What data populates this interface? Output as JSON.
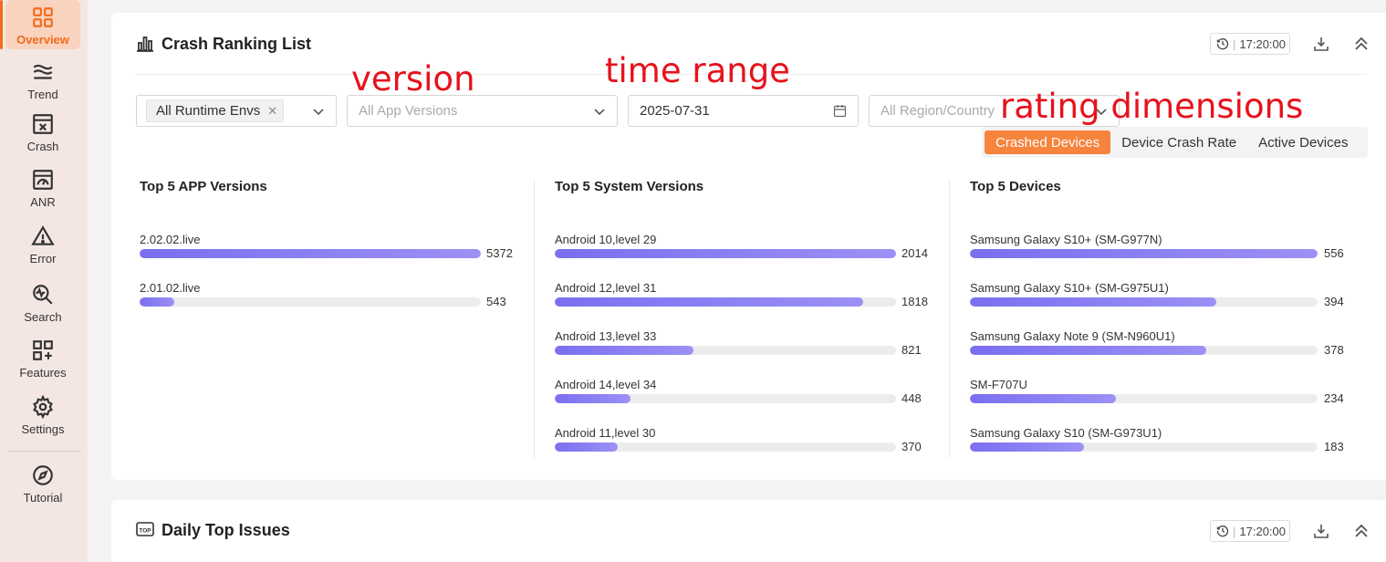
{
  "sidebar": {
    "items": [
      {
        "label": "Overview",
        "icon": "grid-icon",
        "active": true
      },
      {
        "label": "Trend",
        "icon": "wave-icon"
      },
      {
        "label": "Crash",
        "icon": "crash-window-icon"
      },
      {
        "label": "ANR",
        "icon": "gauge-window-icon"
      },
      {
        "label": "Error",
        "icon": "warning-icon"
      },
      {
        "label": "Search",
        "icon": "search-pulse-icon"
      },
      {
        "label": "Features",
        "icon": "apps-plus-icon"
      },
      {
        "label": "Settings",
        "icon": "gear-icon"
      },
      {
        "label": "Tutorial",
        "icon": "compass-icon"
      }
    ]
  },
  "card1": {
    "title": "Crash Ranking List",
    "time": "17:20:00",
    "filters": {
      "runtime_tag": "All Runtime Envs",
      "app_versions_placeholder": "All App Versions",
      "date": "2025-07-31",
      "region_placeholder": "All Region/Country"
    },
    "dimensions": [
      "Crashed Devices",
      "Device Crash Rate",
      "Active Devices"
    ],
    "active_dimension": 0,
    "columns": [
      {
        "title": "Top 5 APP Versions",
        "max": 5372,
        "rows": [
          {
            "label": "2.02.02.live",
            "value": 5372
          },
          {
            "label": "2.01.02.live",
            "value": 543
          }
        ]
      },
      {
        "title": "Top 5 System Versions",
        "max": 2014,
        "rows": [
          {
            "label": "Android 10,level 29",
            "value": 2014
          },
          {
            "label": "Android 12,level 31",
            "value": 1818
          },
          {
            "label": "Android 13,level 33",
            "value": 821
          },
          {
            "label": "Android 14,level 34",
            "value": 448
          },
          {
            "label": "Android 11,level 30",
            "value": 370
          }
        ]
      },
      {
        "title": "Top 5 Devices",
        "max": 556,
        "rows": [
          {
            "label": "Samsung Galaxy S10+ (SM-G977N)",
            "value": 556
          },
          {
            "label": "Samsung Galaxy S10+ (SM-G975U1)",
            "value": 394
          },
          {
            "label": "Samsung Galaxy Note 9 (SM-N960U1)",
            "value": 378
          },
          {
            "label": "SM-F707U",
            "value": 234
          },
          {
            "label": "Samsung Galaxy S10 (SM-G973U1)",
            "value": 183
          }
        ]
      }
    ]
  },
  "card2": {
    "title": "Daily Top Issues",
    "time": "17:20:00"
  },
  "annotations": {
    "version": "version",
    "time_range": "time range",
    "rating_dimensions": "rating dimensions"
  },
  "colors": {
    "accent": "#f26b1d",
    "segment_active": "#f7843d",
    "bar": "#7b6ff0",
    "annotation": "#e6121c"
  }
}
